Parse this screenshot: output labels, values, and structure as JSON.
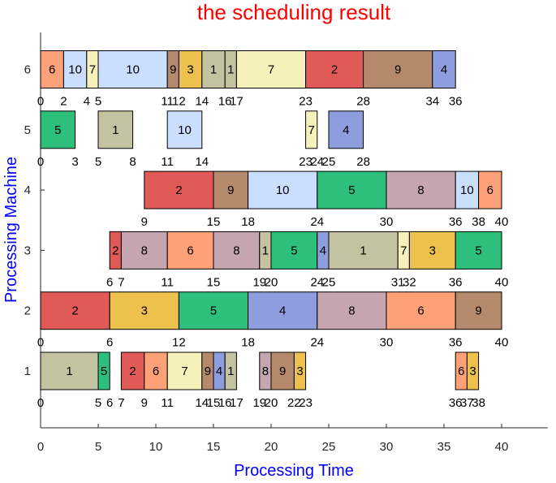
{
  "chart_data": {
    "type": "gantt",
    "title": "the scheduling result",
    "xlabel": "Processing Time",
    "ylabel": "Processing Machine",
    "xlim": [
      0,
      44
    ],
    "xticks": [
      0,
      5,
      10,
      15,
      20,
      25,
      30,
      35,
      40
    ],
    "machines": [
      1,
      2,
      3,
      4,
      5,
      6
    ],
    "job_colors": {
      "1": "#c4c3a1",
      "2": "#e05b57",
      "3": "#ecc14d",
      "4": "#8e9ddd",
      "5": "#2dbf7b",
      "6": "#fea179",
      "7": "#f6f0bb",
      "8": "#c5a6b0",
      "9": "#b58a6c",
      "10": "#cadfff"
    },
    "schedule": [
      {
        "machine": 1,
        "tasks": [
          {
            "job": 1,
            "start": 0,
            "end": 5
          },
          {
            "job": 5,
            "start": 5,
            "end": 6
          },
          {
            "job": 2,
            "start": 7,
            "end": 9
          },
          {
            "job": 6,
            "start": 9,
            "end": 11
          },
          {
            "job": 7,
            "start": 11,
            "end": 14
          },
          {
            "job": 9,
            "start": 14,
            "end": 15
          },
          {
            "job": 4,
            "start": 15,
            "end": 16
          },
          {
            "job": 1,
            "start": 16,
            "end": 17
          },
          {
            "job": 8,
            "start": 19,
            "end": 20
          },
          {
            "job": 9,
            "start": 20,
            "end": 22
          },
          {
            "job": 3,
            "start": 22,
            "end": 23
          },
          {
            "job": 6,
            "start": 36,
            "end": 37
          },
          {
            "job": 3,
            "start": 37,
            "end": 38
          }
        ]
      },
      {
        "machine": 2,
        "tasks": [
          {
            "job": 2,
            "start": 0,
            "end": 6
          },
          {
            "job": 3,
            "start": 6,
            "end": 12
          },
          {
            "job": 5,
            "start": 12,
            "end": 18
          },
          {
            "job": 4,
            "start": 18,
            "end": 24
          },
          {
            "job": 8,
            "start": 24,
            "end": 30
          },
          {
            "job": 6,
            "start": 30,
            "end": 36
          },
          {
            "job": 9,
            "start": 36,
            "end": 40
          }
        ]
      },
      {
        "machine": 3,
        "tasks": [
          {
            "job": 2,
            "start": 6,
            "end": 7
          },
          {
            "job": 8,
            "start": 7,
            "end": 11
          },
          {
            "job": 6,
            "start": 11,
            "end": 15
          },
          {
            "job": 8,
            "start": 15,
            "end": 19
          },
          {
            "job": 1,
            "start": 19,
            "end": 20
          },
          {
            "job": 5,
            "start": 20,
            "end": 24
          },
          {
            "job": 4,
            "start": 24,
            "end": 25
          },
          {
            "job": 1,
            "start": 25,
            "end": 31
          },
          {
            "job": 7,
            "start": 31,
            "end": 32
          },
          {
            "job": 3,
            "start": 32,
            "end": 36
          },
          {
            "job": 5,
            "start": 36,
            "end": 40
          }
        ]
      },
      {
        "machine": 4,
        "tasks": [
          {
            "job": 2,
            "start": 9,
            "end": 15
          },
          {
            "job": 9,
            "start": 15,
            "end": 18
          },
          {
            "job": 10,
            "start": 18,
            "end": 24
          },
          {
            "job": 5,
            "start": 24,
            "end": 30
          },
          {
            "job": 8,
            "start": 30,
            "end": 36
          },
          {
            "job": 10,
            "start": 36,
            "end": 38
          },
          {
            "job": 6,
            "start": 38,
            "end": 40
          }
        ]
      },
      {
        "machine": 5,
        "tasks": [
          {
            "job": 5,
            "start": 0,
            "end": 3
          },
          {
            "job": 1,
            "start": 5,
            "end": 8
          },
          {
            "job": 10,
            "start": 11,
            "end": 14
          },
          {
            "job": 7,
            "start": 23,
            "end": 24
          },
          {
            "job": 4,
            "start": 25,
            "end": 28
          }
        ]
      },
      {
        "machine": 6,
        "tasks": [
          {
            "job": 6,
            "start": 0,
            "end": 2
          },
          {
            "job": 10,
            "start": 2,
            "end": 4
          },
          {
            "job": 7,
            "start": 4,
            "end": 5
          },
          {
            "job": 10,
            "start": 5,
            "end": 11
          },
          {
            "job": 9,
            "start": 11,
            "end": 12
          },
          {
            "job": 3,
            "start": 12,
            "end": 14
          },
          {
            "job": 1,
            "start": 14,
            "end": 16
          },
          {
            "job": 1,
            "start": 16,
            "end": 17
          },
          {
            "job": 7,
            "start": 17,
            "end": 23
          },
          {
            "job": 2,
            "start": 23,
            "end": 28
          },
          {
            "job": 9,
            "start": 28,
            "end": 34
          },
          {
            "job": 4,
            "start": 34,
            "end": 36
          }
        ]
      }
    ],
    "edge_labels": [
      {
        "machine": 1,
        "labels": [
          "0",
          "5",
          "6",
          "7",
          "9",
          "11",
          "14",
          "15",
          "16",
          "17",
          "19",
          "20",
          "22",
          "23",
          "36",
          "37",
          "38"
        ]
      },
      {
        "machine": 2,
        "labels": [
          "0",
          "6",
          "12",
          "18",
          "24",
          "30",
          "36",
          "40"
        ]
      },
      {
        "machine": 3,
        "labels": [
          "6",
          "7",
          "11",
          "15",
          "19",
          "20",
          "24",
          "25",
          "31",
          "32",
          "36",
          "40"
        ]
      },
      {
        "machine": 4,
        "labels": [
          "9",
          "15",
          "18",
          "24",
          "30",
          "36",
          "38",
          "40"
        ]
      },
      {
        "machine": 5,
        "labels": [
          "0",
          "3",
          "5",
          "8",
          "11",
          "14",
          "23",
          "24",
          "25",
          "28"
        ]
      },
      {
        "machine": 6,
        "labels": [
          "0",
          "2",
          "4",
          "5",
          "11",
          "12",
          "14",
          "16",
          "17",
          "23",
          "28",
          "34",
          "36"
        ]
      }
    ]
  }
}
